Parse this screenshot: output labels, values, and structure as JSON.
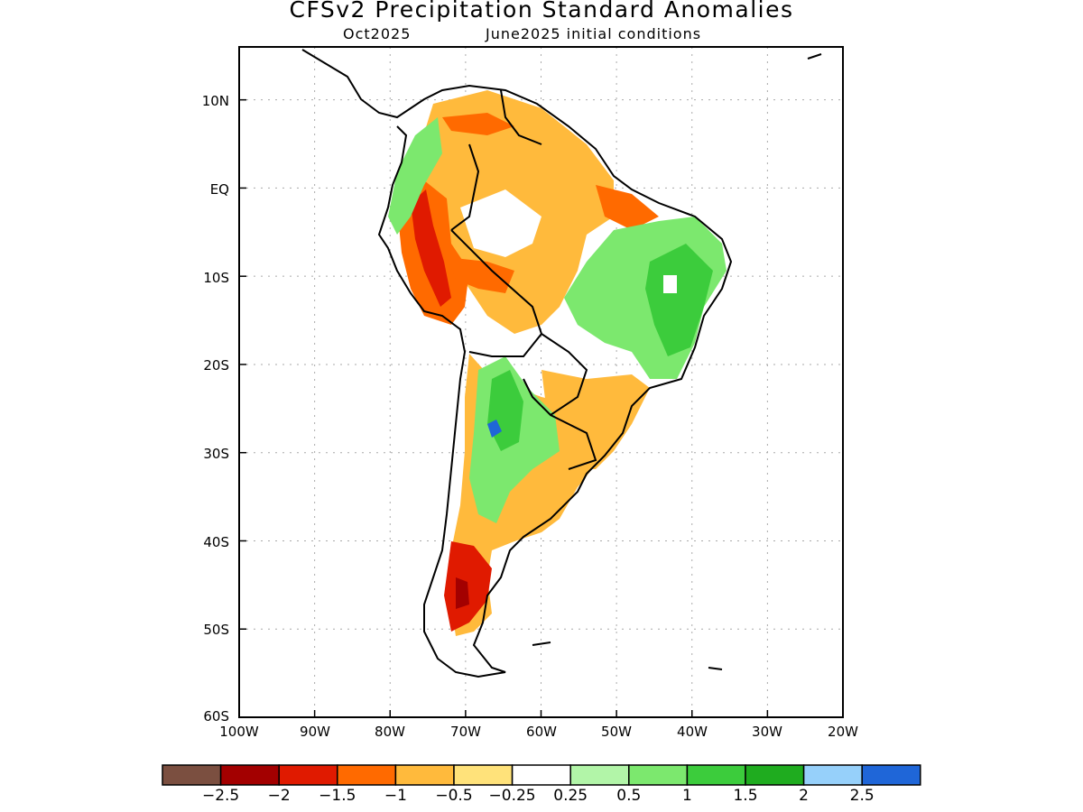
{
  "title": "CFSv2 Precipitation Standard Anomalies",
  "subtitle_left": "Oct2025",
  "subtitle_right": "June2025 initial conditions",
  "lat_labels": [
    "10N",
    "EQ",
    "10S",
    "20S",
    "30S",
    "40S",
    "50S",
    "60S"
  ],
  "lon_labels": [
    "100W",
    "90W",
    "80W",
    "70W",
    "60W",
    "50W",
    "40W",
    "30W",
    "20W"
  ],
  "map_extent": {
    "lon": [
      -100,
      -20
    ],
    "lat": [
      -60,
      16
    ]
  },
  "colorbar": {
    "colors": [
      "#7b4f40",
      "#a30000",
      "#e01a00",
      "#ff6a00",
      "#ffba3c",
      "#ffe27a",
      "#ffffff",
      "#b2f5a8",
      "#7ce86e",
      "#3ccc3c",
      "#1fac1f",
      "#96d0fa",
      "#1f66d8"
    ],
    "labels": [
      "−2.5",
      "−2",
      "−1.5",
      "−1",
      "−0.5",
      "−0.25",
      "0.25",
      "0.5",
      "1",
      "1.5",
      "2",
      "2.5"
    ]
  },
  "regions": [
    {
      "name": "nw-colombia-venezuela",
      "color": "#ffba3c"
    },
    {
      "name": "central-andes-dry",
      "color": "#ff6a00"
    },
    {
      "name": "peru-coast",
      "color": "#e01a00"
    },
    {
      "name": "colombia-wet",
      "color": "#7ce86e"
    },
    {
      "name": "ne-brazil-wet",
      "color": "#7ce86e"
    },
    {
      "name": "brazil-core-wet",
      "color": "#3ccc3c"
    },
    {
      "name": "paraguay-wet",
      "color": "#7ce86e"
    },
    {
      "name": "paraguay-core",
      "color": "#3ccc3c"
    },
    {
      "name": "southern-patagonia-dry",
      "color": "#e01a00"
    },
    {
      "name": "argentina-dry",
      "color": "#ffba3c"
    }
  ]
}
